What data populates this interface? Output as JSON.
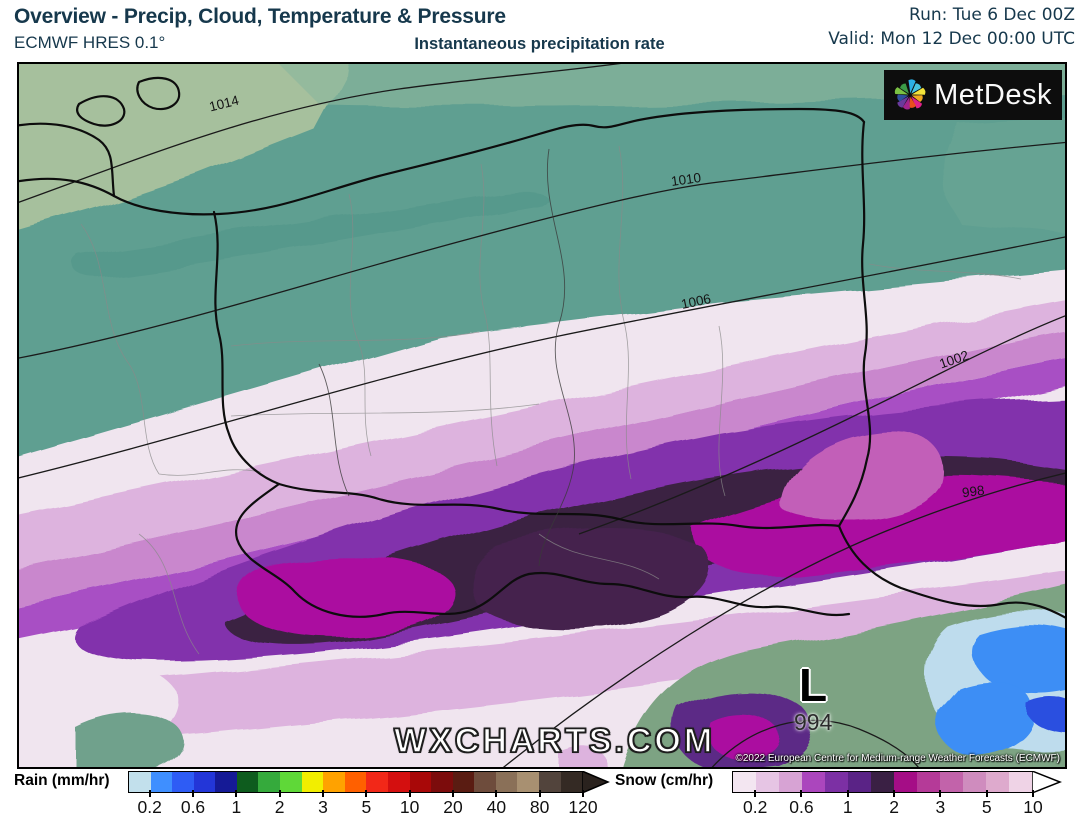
{
  "header": {
    "title": "Overview - Precip, Cloud, Temperature & Pressure",
    "model": "ECMWF HRES 0.1°",
    "subtitle": "Instantaneous precipitation rate",
    "run": "Run: Tue 6 Dec 00Z",
    "valid": "Valid: Mon 12 Dec 00:00 UTC",
    "text_color": "#16384c"
  },
  "map": {
    "logo_text": "MetDesk",
    "watermark": "WXCHARTS.COM",
    "copyright": "©2022 European Centre for Medium-range Weather Forecasts (ECMWF)",
    "low_marker": {
      "symbol": "L",
      "value": "994"
    },
    "isobar_labels": [
      "1014",
      "1010",
      "1006",
      "1002",
      "998"
    ]
  },
  "legend": {
    "rain": {
      "label": "Rain (mm/hr)",
      "ticks": [
        "0.2",
        "0.6",
        "1",
        "2",
        "3",
        "5",
        "10",
        "20",
        "40",
        "80",
        "120"
      ],
      "colors": [
        "#c2e0ec",
        "#3f8fff",
        "#2e5cf5",
        "#2336d8",
        "#151a96",
        "#0e5c1e",
        "#35aa3c",
        "#5fd838",
        "#f2ee00",
        "#ffa200",
        "#ff6000",
        "#f22818",
        "#d40f0f",
        "#a80808",
        "#7c0c0c",
        "#5a1c12",
        "#6e4c3c",
        "#8a7058",
        "#a89071",
        "#52443c",
        "#342a24"
      ],
      "arrow_color": "#2a221e"
    },
    "snow": {
      "label": "Snow (cm/hr)",
      "ticks": [
        "0.2",
        "0.6",
        "1",
        "2",
        "3",
        "5",
        "10"
      ],
      "colors": [
        "#f3e6f1",
        "#e6c5e4",
        "#d7a3d4",
        "#ab46bd",
        "#7c30a4",
        "#5a2386",
        "#3a2044",
        "#a50d86",
        "#b53a98",
        "#c263aa",
        "#cf8cbe",
        "#deaacd",
        "#efd3e6"
      ],
      "arrow_color": "#ffffff"
    }
  }
}
